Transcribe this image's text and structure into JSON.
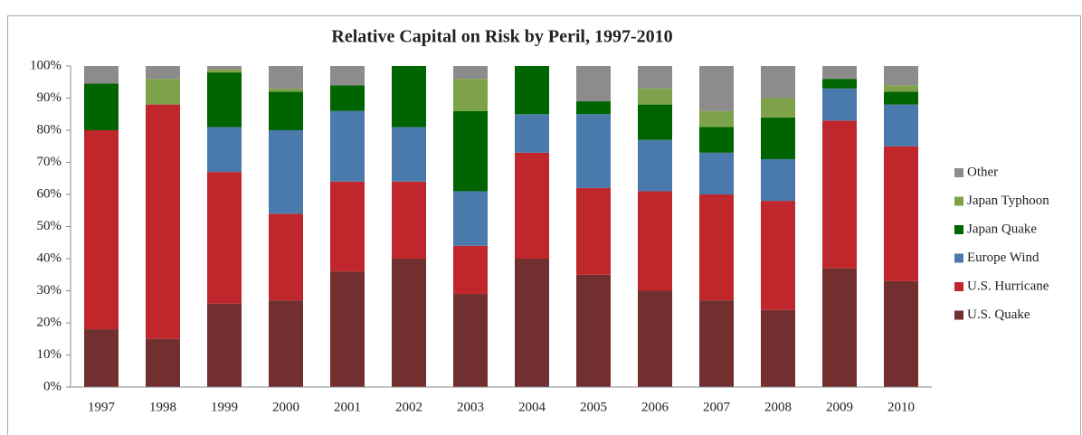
{
  "chart_data": {
    "type": "stacked_bar_percent",
    "title": "Relative Capital on Risk by Peril, 1997-2010",
    "categories": [
      "1997",
      "1998",
      "1999",
      "2000",
      "2001",
      "2002",
      "2003",
      "2004",
      "2005",
      "2006",
      "2007",
      "2008",
      "2009",
      "2010"
    ],
    "series": [
      {
        "name": "U.S. Quake",
        "color": "#722f2f",
        "values": [
          18,
          15,
          26,
          27,
          36,
          40,
          29,
          40,
          35,
          30,
          27,
          24,
          37,
          33
        ]
      },
      {
        "name": "U.S. Hurricane",
        "color": "#c0272d",
        "values": [
          62,
          73,
          41,
          27,
          28,
          24,
          15,
          33,
          27,
          31,
          33,
          34,
          46,
          42
        ]
      },
      {
        "name": "Europe Wind",
        "color": "#4a7aab",
        "values": [
          0,
          0,
          14,
          26,
          22,
          17,
          17,
          12,
          23,
          16,
          13,
          13,
          10,
          13
        ]
      },
      {
        "name": "Japan Quake",
        "color": "#006400",
        "values": [
          14.5,
          0,
          17,
          12,
          8,
          19,
          25,
          15,
          4,
          11,
          8,
          13,
          3,
          4
        ]
      },
      {
        "name": "Japan Typhoon",
        "color": "#7ea24a",
        "values": [
          0,
          8,
          1,
          1,
          0,
          0,
          10,
          0,
          0,
          5,
          5,
          6,
          0,
          2
        ]
      },
      {
        "name": "Other",
        "color": "#8c8c8c",
        "values": [
          5.5,
          4,
          1,
          7,
          6,
          0,
          4,
          0,
          11,
          7,
          14,
          10,
          4,
          6
        ]
      }
    ],
    "ylim": [
      0,
      100
    ],
    "yticks": [
      {
        "value": 0,
        "label": "0%"
      },
      {
        "value": 10,
        "label": "10%"
      },
      {
        "value": 20,
        "label": "20%"
      },
      {
        "value": 30,
        "label": "30%"
      },
      {
        "value": 40,
        "label": "40%"
      },
      {
        "value": 50,
        "label": "50%"
      },
      {
        "value": 60,
        "label": "60%"
      },
      {
        "value": 70,
        "label": "70%"
      },
      {
        "value": 80,
        "label": "80%"
      },
      {
        "value": 90,
        "label": "90%"
      },
      {
        "value": 100,
        "label": "100%"
      }
    ],
    "legend": "right"
  }
}
